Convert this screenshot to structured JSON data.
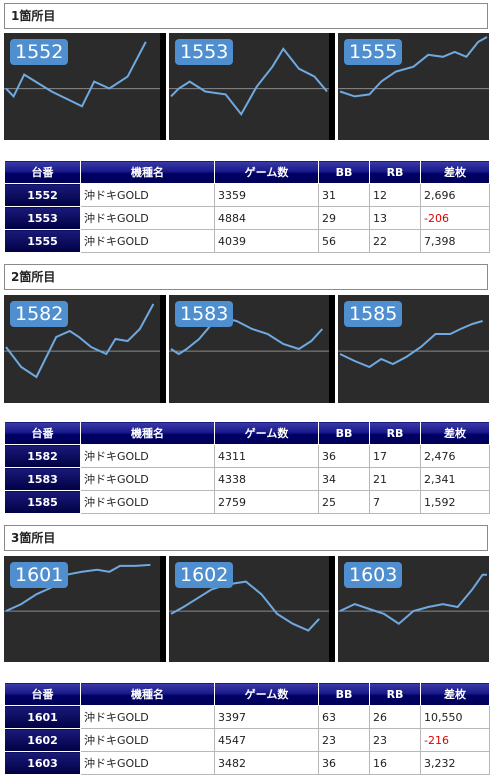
{
  "table_headers": [
    "台番",
    "機種名",
    "ゲーム数",
    "BB",
    "RB",
    "差枚"
  ],
  "sections": [
    {
      "title": "1箇所目",
      "machines": [
        {
          "id": "1552",
          "model": "沖ドキGOLD",
          "games": "3359",
          "bb": "31",
          "rb": "12",
          "diff": "2,696",
          "negative": false,
          "trend": [
            [
              0,
              0.52
            ],
            [
              0.05,
              0.6
            ],
            [
              0.12,
              0.38
            ],
            [
              0.3,
              0.55
            ],
            [
              0.5,
              0.7
            ],
            [
              0.58,
              0.45
            ],
            [
              0.68,
              0.52
            ],
            [
              0.8,
              0.4
            ],
            [
              0.92,
              0.05
            ]
          ]
        },
        {
          "id": "1553",
          "model": "沖ドキGOLD",
          "games": "4884",
          "bb": "29",
          "rb": "13",
          "diff": "-206",
          "negative": true,
          "trend": [
            [
              0,
              0.6
            ],
            [
              0.05,
              0.52
            ],
            [
              0.12,
              0.45
            ],
            [
              0.22,
              0.55
            ],
            [
              0.35,
              0.58
            ],
            [
              0.45,
              0.78
            ],
            [
              0.55,
              0.5
            ],
            [
              0.65,
              0.3
            ],
            [
              0.72,
              0.12
            ],
            [
              0.82,
              0.32
            ],
            [
              0.92,
              0.4
            ],
            [
              1.0,
              0.55
            ]
          ]
        },
        {
          "id": "1555",
          "model": "沖ドキGOLD",
          "games": "4039",
          "bb": "56",
          "rb": "22",
          "diff": "7,398",
          "negative": false,
          "trend": [
            [
              0,
              0.55
            ],
            [
              0.1,
              0.6
            ],
            [
              0.2,
              0.58
            ],
            [
              0.28,
              0.45
            ],
            [
              0.38,
              0.35
            ],
            [
              0.5,
              0.3
            ],
            [
              0.6,
              0.18
            ],
            [
              0.7,
              0.2
            ],
            [
              0.78,
              0.15
            ],
            [
              0.86,
              0.2
            ],
            [
              0.94,
              0.05
            ],
            [
              1.0,
              0.0
            ]
          ]
        }
      ]
    },
    {
      "title": "2箇所目",
      "machines": [
        {
          "id": "1582",
          "model": "沖ドキGOLD",
          "games": "4311",
          "bb": "36",
          "rb": "17",
          "diff": "2,476",
          "negative": false,
          "trend": [
            [
              0,
              0.48
            ],
            [
              0.1,
              0.68
            ],
            [
              0.2,
              0.78
            ],
            [
              0.33,
              0.38
            ],
            [
              0.42,
              0.32
            ],
            [
              0.48,
              0.38
            ],
            [
              0.56,
              0.48
            ],
            [
              0.66,
              0.55
            ],
            [
              0.72,
              0.4
            ],
            [
              0.8,
              0.42
            ],
            [
              0.88,
              0.3
            ],
            [
              0.97,
              0.05
            ]
          ]
        },
        {
          "id": "1583",
          "model": "沖ドキGOLD",
          "games": "4338",
          "bb": "34",
          "rb": "21",
          "diff": "2,341",
          "negative": false,
          "trend": [
            [
              0,
              0.5
            ],
            [
              0.05,
              0.55
            ],
            [
              0.1,
              0.5
            ],
            [
              0.18,
              0.4
            ],
            [
              0.3,
              0.18
            ],
            [
              0.42,
              0.22
            ],
            [
              0.52,
              0.3
            ],
            [
              0.62,
              0.35
            ],
            [
              0.72,
              0.45
            ],
            [
              0.82,
              0.5
            ],
            [
              0.9,
              0.42
            ],
            [
              0.97,
              0.3
            ]
          ]
        },
        {
          "id": "1585",
          "model": "沖ドキGOLD",
          "games": "2759",
          "bb": "25",
          "rb": "7",
          "diff": "1,592",
          "negative": false,
          "trend": [
            [
              0,
              0.55
            ],
            [
              0.1,
              0.62
            ],
            [
              0.2,
              0.68
            ],
            [
              0.28,
              0.6
            ],
            [
              0.36,
              0.65
            ],
            [
              0.45,
              0.58
            ],
            [
              0.55,
              0.48
            ],
            [
              0.65,
              0.35
            ],
            [
              0.75,
              0.35
            ],
            [
              0.82,
              0.3
            ],
            [
              0.9,
              0.25
            ],
            [
              0.97,
              0.22
            ]
          ]
        }
      ]
    },
    {
      "title": "3箇所目",
      "machines": [
        {
          "id": "1601",
          "model": "沖ドキGOLD",
          "games": "3397",
          "bb": "63",
          "rb": "26",
          "diff": "10,550",
          "negative": false,
          "trend": [
            [
              0,
              0.52
            ],
            [
              0.1,
              0.45
            ],
            [
              0.2,
              0.35
            ],
            [
              0.3,
              0.28
            ],
            [
              0.4,
              0.15
            ],
            [
              0.5,
              0.12
            ],
            [
              0.6,
              0.1
            ],
            [
              0.68,
              0.12
            ],
            [
              0.75,
              0.06
            ],
            [
              0.85,
              0.06
            ],
            [
              0.95,
              0.05
            ]
          ]
        },
        {
          "id": "1602",
          "model": "沖ドキGOLD",
          "games": "4547",
          "bb": "23",
          "rb": "23",
          "diff": "-216",
          "negative": true,
          "trend": [
            [
              0,
              0.55
            ],
            [
              0.08,
              0.48
            ],
            [
              0.16,
              0.4
            ],
            [
              0.26,
              0.3
            ],
            [
              0.36,
              0.25
            ],
            [
              0.48,
              0.22
            ],
            [
              0.58,
              0.35
            ],
            [
              0.68,
              0.55
            ],
            [
              0.78,
              0.65
            ],
            [
              0.88,
              0.72
            ],
            [
              0.95,
              0.6
            ]
          ]
        },
        {
          "id": "1603",
          "model": "沖ドキGOLD",
          "games": "3482",
          "bb": "36",
          "rb": "16",
          "diff": "3,232",
          "negative": false,
          "trend": [
            [
              0,
              0.52
            ],
            [
              0.1,
              0.45
            ],
            [
              0.2,
              0.5
            ],
            [
              0.3,
              0.55
            ],
            [
              0.4,
              0.65
            ],
            [
              0.5,
              0.52
            ],
            [
              0.6,
              0.48
            ],
            [
              0.7,
              0.45
            ],
            [
              0.8,
              0.48
            ],
            [
              0.9,
              0.3
            ],
            [
              0.97,
              0.15
            ],
            [
              1.0,
              0.15
            ]
          ]
        }
      ]
    }
  ],
  "colors": {
    "chart_bg": "#2b2b2b",
    "trend_line": "#6fa9e0",
    "badge_bg": "#4f8fcf",
    "header_navy": "#000066",
    "negative": "#e00000"
  }
}
